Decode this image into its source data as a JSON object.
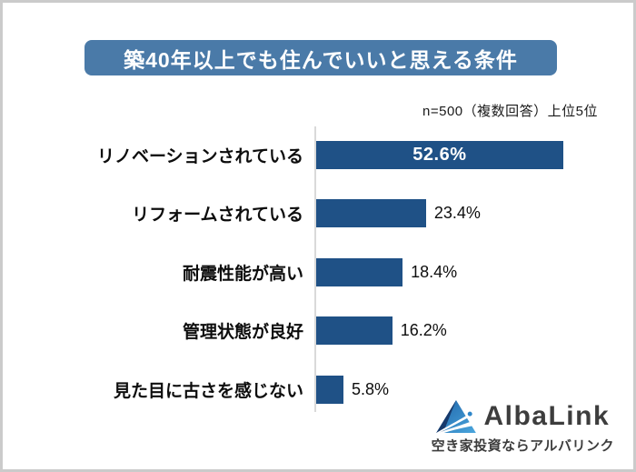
{
  "page": {
    "background": "#ffffff",
    "frame_border_color": "#cbcbcb"
  },
  "header": {
    "title": "築40年以上でも住んでいいと思える条件",
    "title_bg": "#4a7aa8",
    "title_color": "#ffffff"
  },
  "note": {
    "text": "n=500（複数回答）上位5位"
  },
  "chart_data": {
    "type": "bar",
    "orientation": "horizontal",
    "title": "築40年以上でも住んでいいと思える条件",
    "subtitle": "n=500（複数回答）上位5位",
    "categories": [
      "リノベーションされている",
      "リフォームされている",
      "耐震性能が高い",
      "管理状態が良好",
      "見た目に古さを感じない"
    ],
    "values": [
      52.6,
      23.4,
      18.4,
      16.2,
      5.8
    ],
    "value_labels": [
      "52.6%",
      "23.4%",
      "18.4%",
      "16.2%",
      "5.8%"
    ],
    "value_label_inside": [
      true,
      false,
      false,
      false,
      false
    ],
    "xlabel": "",
    "ylabel": "",
    "xlim": [
      0,
      60
    ],
    "grid": false,
    "legend": false,
    "bar_color": "#1f5186",
    "axis_line_color": "#d9d9d9"
  },
  "logo": {
    "brand": "AlbaLink",
    "tagline": "空き家投資ならアルバリンク",
    "brand_color": "#3d3d3d",
    "icon_colors": {
      "dark_navy": "#17396b",
      "mid_blue": "#1e63a8",
      "light_blue": "#4aa6dd",
      "white": "#ffffff"
    }
  }
}
